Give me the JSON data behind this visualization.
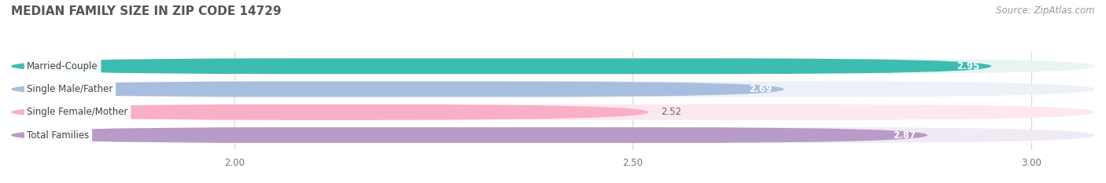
{
  "title": "MEDIAN FAMILY SIZE IN ZIP CODE 14729",
  "source": "Source: ZipAtlas.com",
  "categories": [
    "Married-Couple",
    "Single Male/Father",
    "Single Female/Mother",
    "Total Families"
  ],
  "values": [
    2.95,
    2.69,
    2.52,
    2.87
  ],
  "bar_colors": [
    "#3dbcb0",
    "#a8bede",
    "#f9afc8",
    "#b89bc8"
  ],
  "bar_bg_colors": [
    "#e8f5f4",
    "#edf1f8",
    "#fde8ef",
    "#f0eaf5"
  ],
  "xlim": [
    1.72,
    3.08
  ],
  "xstart": 1.72,
  "xticks": [
    2.0,
    2.5,
    3.0
  ],
  "xtick_labels": [
    "2.00",
    "2.50",
    "3.00"
  ],
  "label_fontsize": 8.5,
  "value_fontsize": 8.5,
  "title_fontsize": 11,
  "source_fontsize": 8.5,
  "bar_height": 0.68,
  "bar_gap": 0.32,
  "background_color": "#ffffff",
  "grid_color": "#d8d8d8",
  "title_color": "#555555",
  "label_color": "#444444",
  "value_color_inside": "#ffffff",
  "value_color_outside": "#666666"
}
